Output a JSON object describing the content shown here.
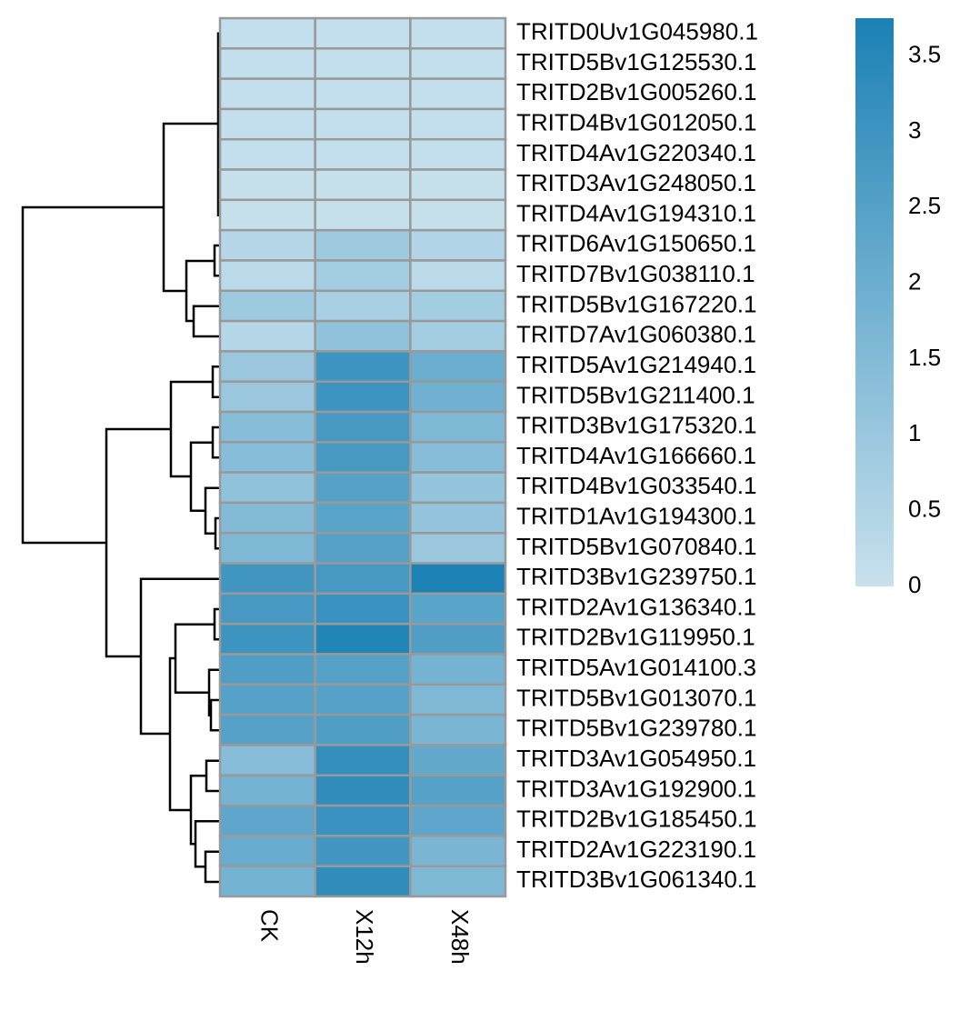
{
  "chart_data": {
    "type": "heatmap",
    "columns": [
      "CK",
      "X12h",
      "X48h"
    ],
    "rows": [
      "TRITD0Uv1G045980.1",
      "TRITD5Bv1G125530.1",
      "TRITD2Bv1G005260.1",
      "TRITD4Bv1G012050.1",
      "TRITD4Av1G220340.1",
      "TRITD3Av1G248050.1",
      "TRITD4Av1G194310.1",
      "TRITD6Av1G150650.1",
      "TRITD7Bv1G038110.1",
      "TRITD5Bv1G167220.1",
      "TRITD7Av1G060380.1",
      "TRITD5Av1G214940.1",
      "TRITD5Bv1G211400.1",
      "TRITD3Bv1G175320.1",
      "TRITD4Av1G166660.1",
      "TRITD4Bv1G033540.1",
      "TRITD1Av1G194300.1",
      "TRITD5Bv1G070840.1",
      "TRITD3Bv1G239750.1",
      "TRITD2Av1G136340.1",
      "TRITD2Bv1G119950.1",
      "TRITD5Av1G014100.3",
      "TRITD5Bv1G013070.1",
      "TRITD5Bv1G239780.1",
      "TRITD3Av1G054950.1",
      "TRITD3Av1G192900.1",
      "TRITD2Bv1G185450.1",
      "TRITD2Av1G223190.1",
      "TRITD3Bv1G061340.1"
    ],
    "values": [
      [
        0.1,
        0.1,
        0.1
      ],
      [
        0.1,
        0.1,
        0.1
      ],
      [
        0.1,
        0.1,
        0.1
      ],
      [
        0.1,
        0.1,
        0.1
      ],
      [
        0.1,
        0.1,
        0.1
      ],
      [
        0.05,
        0.05,
        0.05
      ],
      [
        0.05,
        0.05,
        0.05
      ],
      [
        0.4,
        0.9,
        0.5
      ],
      [
        0.3,
        0.8,
        0.3
      ],
      [
        0.9,
        0.7,
        0.8
      ],
      [
        0.4,
        1.2,
        0.8
      ],
      [
        1.0,
        3.0,
        2.0
      ],
      [
        1.0,
        3.0,
        1.9
      ],
      [
        1.4,
        2.8,
        1.6
      ],
      [
        1.4,
        2.8,
        1.4
      ],
      [
        1.2,
        2.5,
        1.1
      ],
      [
        1.5,
        2.4,
        1.1
      ],
      [
        1.6,
        2.5,
        1.0
      ],
      [
        2.9,
        2.8,
        3.7
      ],
      [
        2.8,
        3.1,
        2.4
      ],
      [
        3.0,
        3.6,
        2.6
      ],
      [
        2.6,
        2.5,
        1.8
      ],
      [
        2.5,
        2.5,
        1.6
      ],
      [
        2.5,
        2.6,
        1.7
      ],
      [
        1.4,
        3.2,
        2.2
      ],
      [
        1.8,
        3.3,
        2.5
      ],
      [
        2.3,
        3.1,
        2.3
      ],
      [
        2.1,
        2.9,
        1.7
      ],
      [
        1.8,
        3.3,
        1.6
      ]
    ],
    "colormap": [
      "#c8e1ed",
      "#1b81b5"
    ],
    "clim": [
      0,
      3.75
    ],
    "cticks": [
      0,
      0.5,
      1,
      1.5,
      2,
      2.5,
      3,
      3.5
    ]
  }
}
